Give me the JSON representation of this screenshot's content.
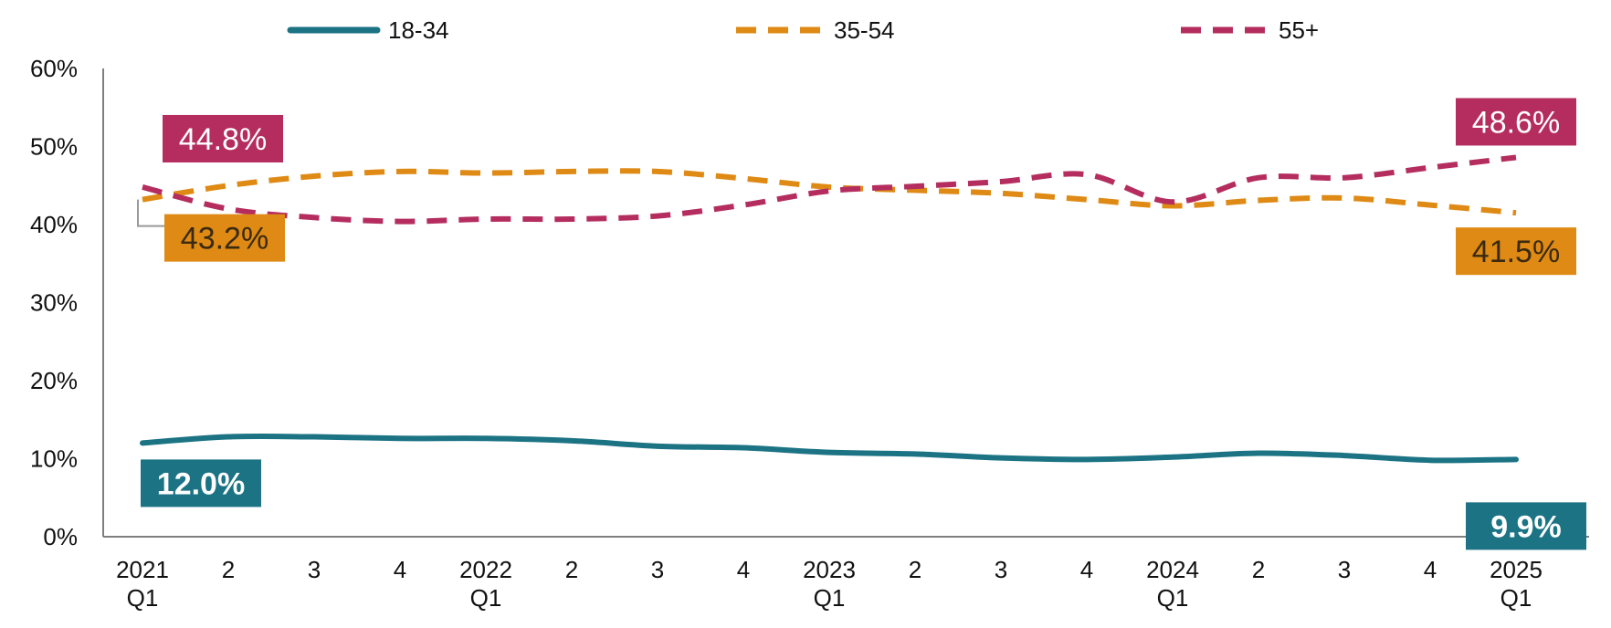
{
  "chart_data": {
    "type": "line",
    "categories": [
      [
        "2021",
        "Q1"
      ],
      [
        "2",
        ""
      ],
      [
        "3",
        ""
      ],
      [
        "4",
        ""
      ],
      [
        "2022",
        "Q1"
      ],
      [
        "2",
        ""
      ],
      [
        "3",
        ""
      ],
      [
        "4",
        ""
      ],
      [
        "2023",
        "Q1"
      ],
      [
        "2",
        ""
      ],
      [
        "3",
        ""
      ],
      [
        "4",
        ""
      ],
      [
        "2024",
        "Q1"
      ],
      [
        "2",
        ""
      ],
      [
        "3",
        ""
      ],
      [
        "4",
        ""
      ],
      [
        "2025",
        "Q1"
      ]
    ],
    "ylim": [
      0,
      60
    ],
    "yticks": [
      0,
      10,
      20,
      30,
      40,
      50,
      60
    ],
    "ytick_labels": [
      "0%",
      "10%",
      "20%",
      "30%",
      "40%",
      "50%",
      "60%"
    ],
    "grid": false,
    "legend_position": "top",
    "series": [
      {
        "name": "18-34",
        "color": "#1b7384",
        "dash": "solid",
        "values": [
          12.0,
          12.8,
          12.8,
          12.6,
          12.6,
          12.3,
          11.6,
          11.4,
          10.8,
          10.6,
          10.1,
          9.9,
          10.2,
          10.7,
          10.4,
          9.8,
          9.9
        ],
        "labels": [
          {
            "index": 0,
            "text": "12.0%"
          },
          {
            "index": 16,
            "text": "9.9%"
          }
        ]
      },
      {
        "name": "35-54",
        "color": "#de8a14",
        "dash": "dashed",
        "values": [
          43.2,
          45.0,
          46.2,
          46.8,
          46.6,
          46.8,
          46.8,
          45.9,
          44.8,
          44.4,
          44.0,
          43.2,
          42.4,
          43.1,
          43.4,
          42.5,
          41.5
        ],
        "labels": [
          {
            "index": 0,
            "text": "43.2%"
          },
          {
            "index": 16,
            "text": "41.5%"
          }
        ]
      },
      {
        "name": "55+",
        "color": "#b42d5e",
        "dash": "dashed",
        "values": [
          44.8,
          42.0,
          40.9,
          40.4,
          40.7,
          40.7,
          41.1,
          42.5,
          44.3,
          44.9,
          45.5,
          46.4,
          42.9,
          46.0,
          46.0,
          47.3,
          48.6
        ],
        "labels": [
          {
            "index": 0,
            "text": "44.8%"
          },
          {
            "index": 16,
            "text": "48.6%"
          }
        ]
      }
    ]
  }
}
